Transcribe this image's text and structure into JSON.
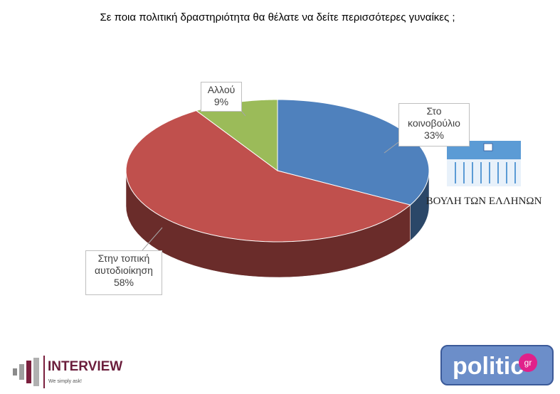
{
  "chart_data": {
    "type": "pie",
    "title": "Σε ποια πολιτική δραστηριότητα θα θέλατε να δείτε περισσότερες γυναίκες ;",
    "categories": [
      "Στο κοινοβούλιο",
      "Στην τοπική αυτοδιοίκηση",
      "Αλλού"
    ],
    "values": [
      33,
      58,
      9
    ],
    "value_labels": [
      "33%",
      "58%",
      "9%"
    ],
    "colors": [
      "#4f81bd",
      "#c0504d",
      "#9bbb59"
    ]
  },
  "logos": {
    "parliament": "ΒΟΥΛΗ ΤΩΝ ΕΛΛΗΝΩΝ",
    "interview": "INTERVIEW",
    "interview_tagline": "We simply ask!",
    "politic": "politic",
    "politic_suffix": "gr"
  }
}
